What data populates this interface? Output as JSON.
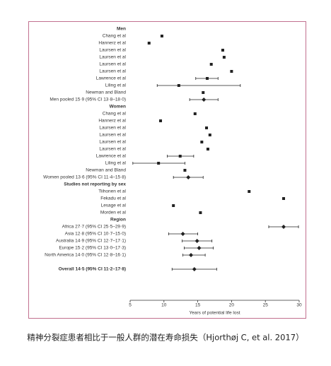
{
  "chart_data": {
    "type": "forest",
    "xlabel": "Years of potential life lost",
    "xlim": [
      5,
      30
    ],
    "xticks": [
      5,
      10,
      15,
      20,
      25,
      30
    ],
    "color": "#222222",
    "groups": [
      {
        "title": "Men",
        "rows": [
          {
            "label": "Chang et al",
            "value": 9.7
          },
          {
            "label": "Hannerz et al",
            "value": 7.8
          },
          {
            "label": "Laursen et al",
            "value": 18.7
          },
          {
            "label": "Laursen et al",
            "value": 18.9
          },
          {
            "label": "Laursen et al",
            "value": 17.0
          },
          {
            "label": "Laursen et al",
            "value": 20.0
          },
          {
            "label": "Lawrence et al",
            "value": 16.4,
            "lower": 14.7,
            "upper": 18.0
          },
          {
            "label": "Liling et al",
            "value": 12.2,
            "lower": 9.0,
            "upper": 21.3
          },
          {
            "label": "Newman and Bland",
            "value": 15.8
          },
          {
            "label": "Men pooled 15·9 (95% CI 13·8–18·0)",
            "value": 15.9,
            "lower": 13.8,
            "upper": 18.0,
            "shape": "diamond"
          }
        ]
      },
      {
        "title": "Women",
        "rows": [
          {
            "label": "Chang et al",
            "value": 14.6
          },
          {
            "label": "Hannerz et al",
            "value": 9.5
          },
          {
            "label": "Laursen et al",
            "value": 16.3
          },
          {
            "label": "Laursen et al",
            "value": 16.8
          },
          {
            "label": "Laursen et al",
            "value": 15.6
          },
          {
            "label": "Laursen et al",
            "value": 16.5
          },
          {
            "label": "Lawrence et al",
            "value": 12.4,
            "lower": 10.5,
            "upper": 14.4
          },
          {
            "label": "Liling et al",
            "value": 9.2,
            "lower": 5.4,
            "upper": 13.1
          },
          {
            "label": "Newman and Bland",
            "value": 13.1
          },
          {
            "label": "Women pooled 13·6 (95% CI 11·4–15·8)",
            "value": 13.6,
            "lower": 11.4,
            "upper": 15.8,
            "shape": "diamond"
          }
        ]
      },
      {
        "title": "Studies not reporting by sex",
        "rows": [
          {
            "label": "Tiihonen et al",
            "value": 22.6
          },
          {
            "label": "Fekadu et al",
            "value": 27.7
          },
          {
            "label": "Lesage et al",
            "value": 11.4
          },
          {
            "label": "Morden et al",
            "value": 15.4
          }
        ]
      },
      {
        "title": "Region",
        "rows": [
          {
            "label": "Africa 27·7 (95% CI 25·5–29·9)",
            "value": 27.7,
            "lower": 25.5,
            "upper": 29.9,
            "shape": "diamond"
          },
          {
            "label": "Asia 12·8 (95% CI 10·7–15·0)",
            "value": 12.8,
            "lower": 10.7,
            "upper": 15.0,
            "shape": "diamond"
          },
          {
            "label": "Australia 14·9 (95% CI 12·7–17·1)",
            "value": 14.9,
            "lower": 12.7,
            "upper": 17.1,
            "shape": "diamond"
          },
          {
            "label": "Europe 15·2 (95% CI 13·0–17·3)",
            "value": 15.2,
            "lower": 13.0,
            "upper": 17.3,
            "shape": "diamond"
          },
          {
            "label": "North America 14·0 (95% CI 12·8–16·1)",
            "value": 14.0,
            "lower": 12.8,
            "upper": 16.1,
            "shape": "diamond"
          }
        ]
      }
    ],
    "overall": {
      "label": "Overall 14·5 (95% CI 11·2–17·8)",
      "value": 14.5,
      "lower": 11.2,
      "upper": 17.8,
      "shape": "diamond"
    }
  },
  "caption": "精神分裂症患者相比于一般人群的潜在寿命损失（Hjorthøj C, et al. 2017）"
}
